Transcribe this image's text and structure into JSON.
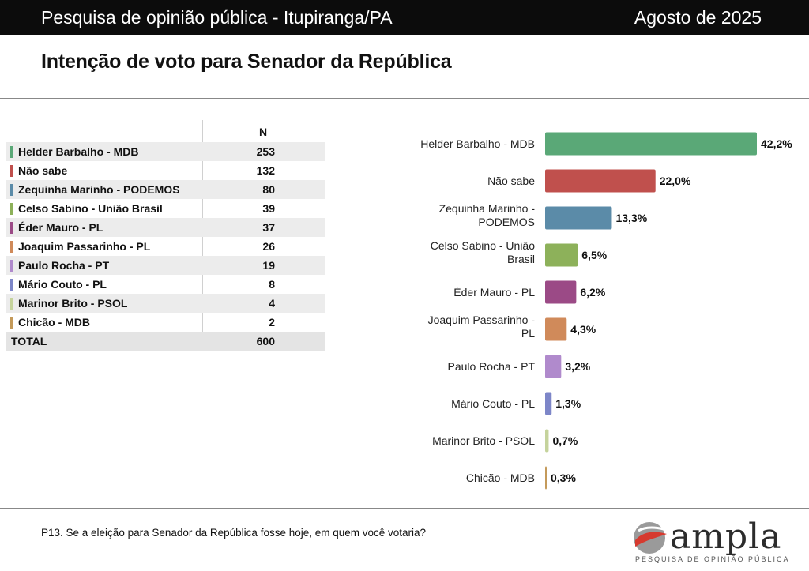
{
  "header": {
    "title": "Pesquisa de opinião pública - Itupiranga/PA",
    "date": "Agosto de 2025"
  },
  "page_title": "Intenção de voto para Senador da República",
  "table": {
    "n_header": "N",
    "rows": [
      {
        "name": "Helder Barbalho - MDB",
        "n": "253",
        "color": "#5aa877"
      },
      {
        "name": "Não sabe",
        "n": "132",
        "color": "#c0504d"
      },
      {
        "name": "Zequinha Marinho - PODEMOS",
        "n": "80",
        "color": "#5b8ba8"
      },
      {
        "name": "Celso Sabino - União Brasil",
        "n": "39",
        "color": "#8db15a"
      },
      {
        "name": "Éder Mauro - PL",
        "n": "37",
        "color": "#9b4a86"
      },
      {
        "name": "Joaquim Passarinho - PL",
        "n": "26",
        "color": "#d08a5a"
      },
      {
        "name": "Paulo Rocha - PT",
        "n": "19",
        "color": "#b08acc"
      },
      {
        "name": "Mário Couto - PL",
        "n": "8",
        "color": "#7d86c8"
      },
      {
        "name": "Marinor Brito - PSOL",
        "n": "4",
        "color": "#c5d39c"
      },
      {
        "name": "Chicão - MDB",
        "n": "2",
        "color": "#c49a5a"
      }
    ],
    "total_label": "TOTAL",
    "total_n": "600"
  },
  "chart_data": {
    "type": "bar",
    "orientation": "horizontal",
    "categories": [
      "Helder Barbalho - MDB",
      "Não sabe",
      "Zequinha Marinho - PODEMOS",
      "Celso Sabino - União Brasil",
      "Éder Mauro - PL",
      "Joaquim Passarinho - PL",
      "Paulo Rocha - PT",
      "Mário Couto - PL",
      "Marinor Brito - PSOL",
      "Chicão - MDB"
    ],
    "values": [
      42.2,
      22.0,
      13.3,
      6.5,
      6.2,
      4.3,
      3.2,
      1.3,
      0.7,
      0.3
    ],
    "value_labels": [
      "42,2%",
      "22,0%",
      "13,3%",
      "6,5%",
      "6,2%",
      "4,3%",
      "3,2%",
      "1,3%",
      "0,7%",
      "0,3%"
    ],
    "colors": [
      "#5aa877",
      "#c0504d",
      "#5b8ba8",
      "#8db15a",
      "#9b4a86",
      "#d08a5a",
      "#b08acc",
      "#7d86c8",
      "#c5d39c",
      "#c49a5a"
    ],
    "xlim": [
      0,
      42.2
    ],
    "grid": false,
    "legend": "none"
  },
  "footnote": "P13. Se a eleição para Senador da República fosse hoje, em quem você votaria?",
  "logo": {
    "word": "ampla",
    "tagline": "PESQUISA DE OPINIÃO PÚBLICA"
  }
}
